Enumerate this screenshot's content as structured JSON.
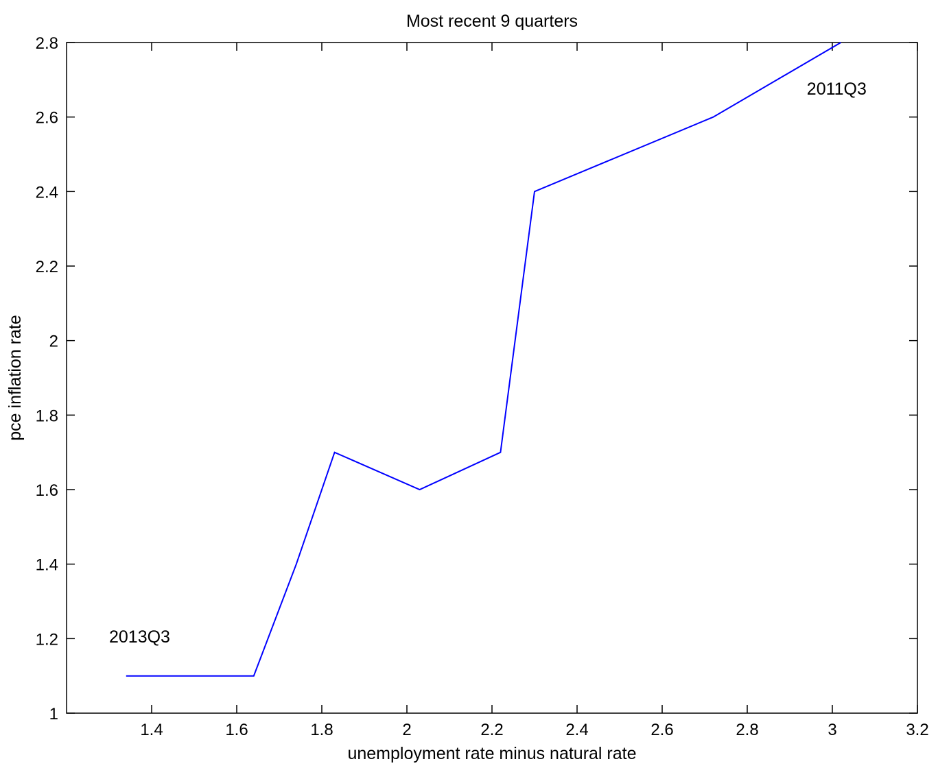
{
  "chart_data": {
    "type": "line",
    "title": "Most recent 9 quarters",
    "xlabel": "unemployment rate minus natural rate",
    "ylabel": "pce inflation rate",
    "xlim": [
      1.2,
      3.2
    ],
    "ylim": [
      1,
      2.8
    ],
    "xticks": [
      1.4,
      1.6,
      1.8,
      2,
      2.2,
      2.4,
      2.6,
      2.8,
      3,
      3.2
    ],
    "xtick_labels": [
      "1.4",
      "1.6",
      "1.8",
      "2",
      "2.2",
      "2.4",
      "2.6",
      "2.8",
      "3",
      "3.2"
    ],
    "yticks": [
      1,
      1.2,
      1.4,
      1.6,
      1.8,
      2,
      2.2,
      2.4,
      2.6,
      2.8
    ],
    "ytick_labels": [
      "1",
      "1.2",
      "1.4",
      "1.6",
      "1.8",
      "2",
      "2.2",
      "2.4",
      "2.6",
      "2.8"
    ],
    "grid": false,
    "series": [
      {
        "color": "#0000ff",
        "x": [
          1.34,
          1.64,
          1.74,
          1.83,
          2.03,
          2.22,
          2.3,
          2.72,
          3.02
        ],
        "y": [
          1.1,
          1.1,
          1.4,
          1.7,
          1.6,
          1.7,
          2.4,
          2.6,
          2.8
        ]
      }
    ],
    "annotations": [
      {
        "text": "2013Q3",
        "x": 1.3,
        "y": 1.19
      },
      {
        "text": "2011Q3",
        "x": 2.94,
        "y": 2.66
      }
    ]
  }
}
